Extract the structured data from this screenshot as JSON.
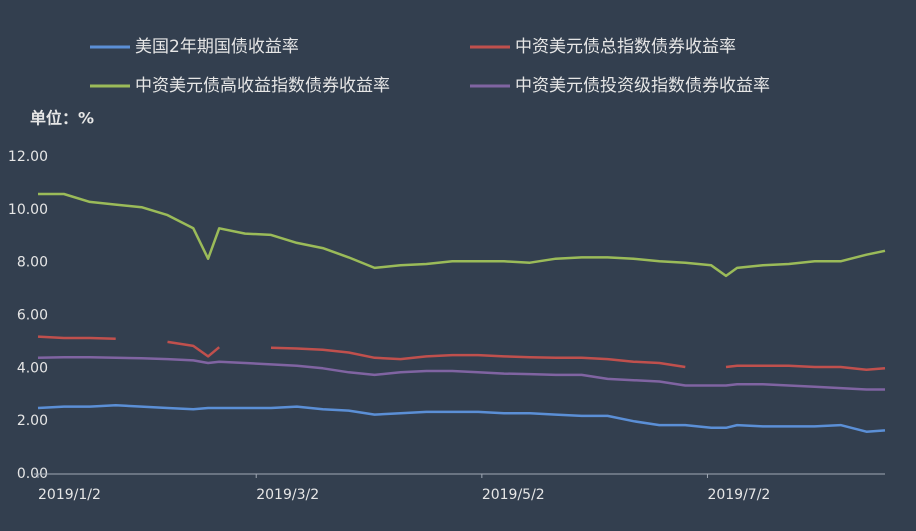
{
  "chart_data": {
    "type": "line",
    "unit_label": "单位：%",
    "x": [
      "2019/1/2",
      "2019/1/9",
      "2019/1/16",
      "2019/1/23",
      "2019/1/30",
      "2019/2/6",
      "2019/2/13",
      "2019/2/17",
      "2019/2/20",
      "2019/2/27",
      "2019/3/6",
      "2019/3/13",
      "2019/3/20",
      "2019/3/27",
      "2019/4/3",
      "2019/4/10",
      "2019/4/17",
      "2019/4/24",
      "2019/5/1",
      "2019/5/8",
      "2019/5/15",
      "2019/5/22",
      "2019/5/29",
      "2019/6/5",
      "2019/6/12",
      "2019/6/19",
      "2019/6/26",
      "2019/7/3",
      "2019/7/7",
      "2019/7/10",
      "2019/7/17",
      "2019/7/24",
      "2019/7/31",
      "2019/8/7",
      "2019/8/14",
      "2019/8/19"
    ],
    "series": [
      {
        "name": "美国2年期国债收益率",
        "color": "#5b8fd6",
        "values": [
          2.5,
          2.55,
          2.55,
          2.6,
          2.55,
          2.5,
          2.45,
          2.5,
          2.5,
          2.5,
          2.5,
          2.55,
          2.45,
          2.4,
          2.25,
          2.3,
          2.35,
          2.35,
          2.35,
          2.3,
          2.3,
          2.25,
          2.2,
          2.2,
          2.0,
          1.85,
          1.85,
          1.75,
          1.75,
          1.85,
          1.8,
          1.8,
          1.8,
          1.85,
          1.6,
          1.65
        ]
      },
      {
        "name": "中资美元债总指数债券收益率",
        "color": "#c0504d",
        "values": [
          5.2,
          5.15,
          5.15,
          5.12,
          null,
          5.0,
          4.85,
          4.45,
          4.8,
          null,
          4.78,
          4.75,
          4.7,
          4.6,
          4.4,
          4.35,
          4.45,
          4.5,
          4.5,
          4.45,
          4.42,
          4.4,
          4.4,
          4.35,
          4.25,
          4.2,
          4.05,
          null,
          4.05,
          4.1,
          4.1,
          4.1,
          4.05,
          4.05,
          3.95,
          4.0
        ]
      },
      {
        "name": "中资美元债高收益指数债券收益率",
        "color": "#9bbb59",
        "values": [
          10.6,
          10.6,
          10.3,
          10.2,
          10.1,
          9.8,
          9.3,
          8.15,
          9.3,
          9.1,
          9.05,
          8.75,
          8.55,
          8.2,
          7.8,
          7.9,
          7.95,
          8.05,
          8.05,
          8.05,
          8.0,
          8.15,
          8.2,
          8.2,
          8.15,
          8.05,
          8.0,
          7.9,
          7.5,
          7.8,
          7.9,
          7.95,
          8.05,
          8.05,
          8.3,
          8.45
        ]
      },
      {
        "name": "中资美元债投资级指数债券收益率",
        "color": "#8064a2",
        "values": [
          4.4,
          4.42,
          4.42,
          4.4,
          4.38,
          4.35,
          4.3,
          4.2,
          4.25,
          4.2,
          4.15,
          4.1,
          4.0,
          3.85,
          3.75,
          3.85,
          3.9,
          3.9,
          3.85,
          3.8,
          3.78,
          3.75,
          3.75,
          3.6,
          3.55,
          3.5,
          3.35,
          3.35,
          3.35,
          3.4,
          3.4,
          3.35,
          3.3,
          3.25,
          3.2,
          3.2
        ]
      }
    ],
    "xlim": [
      "2019/1/2",
      "2019/8/19"
    ],
    "xticks": [
      "2019/1/2",
      "2019/3/2",
      "2019/5/2",
      "2019/7/2"
    ],
    "ylim": [
      0,
      12
    ],
    "yticks": [
      {
        "value": 0,
        "label": "0.00"
      },
      {
        "value": 2,
        "label": "2.00"
      },
      {
        "value": 4,
        "label": "4.00"
      },
      {
        "value": 6,
        "label": "6.00"
      },
      {
        "value": 8,
        "label": "8.00"
      },
      {
        "value": 10,
        "label": "10.00"
      },
      {
        "value": 12,
        "label": "12.00"
      }
    ],
    "grid": false
  }
}
